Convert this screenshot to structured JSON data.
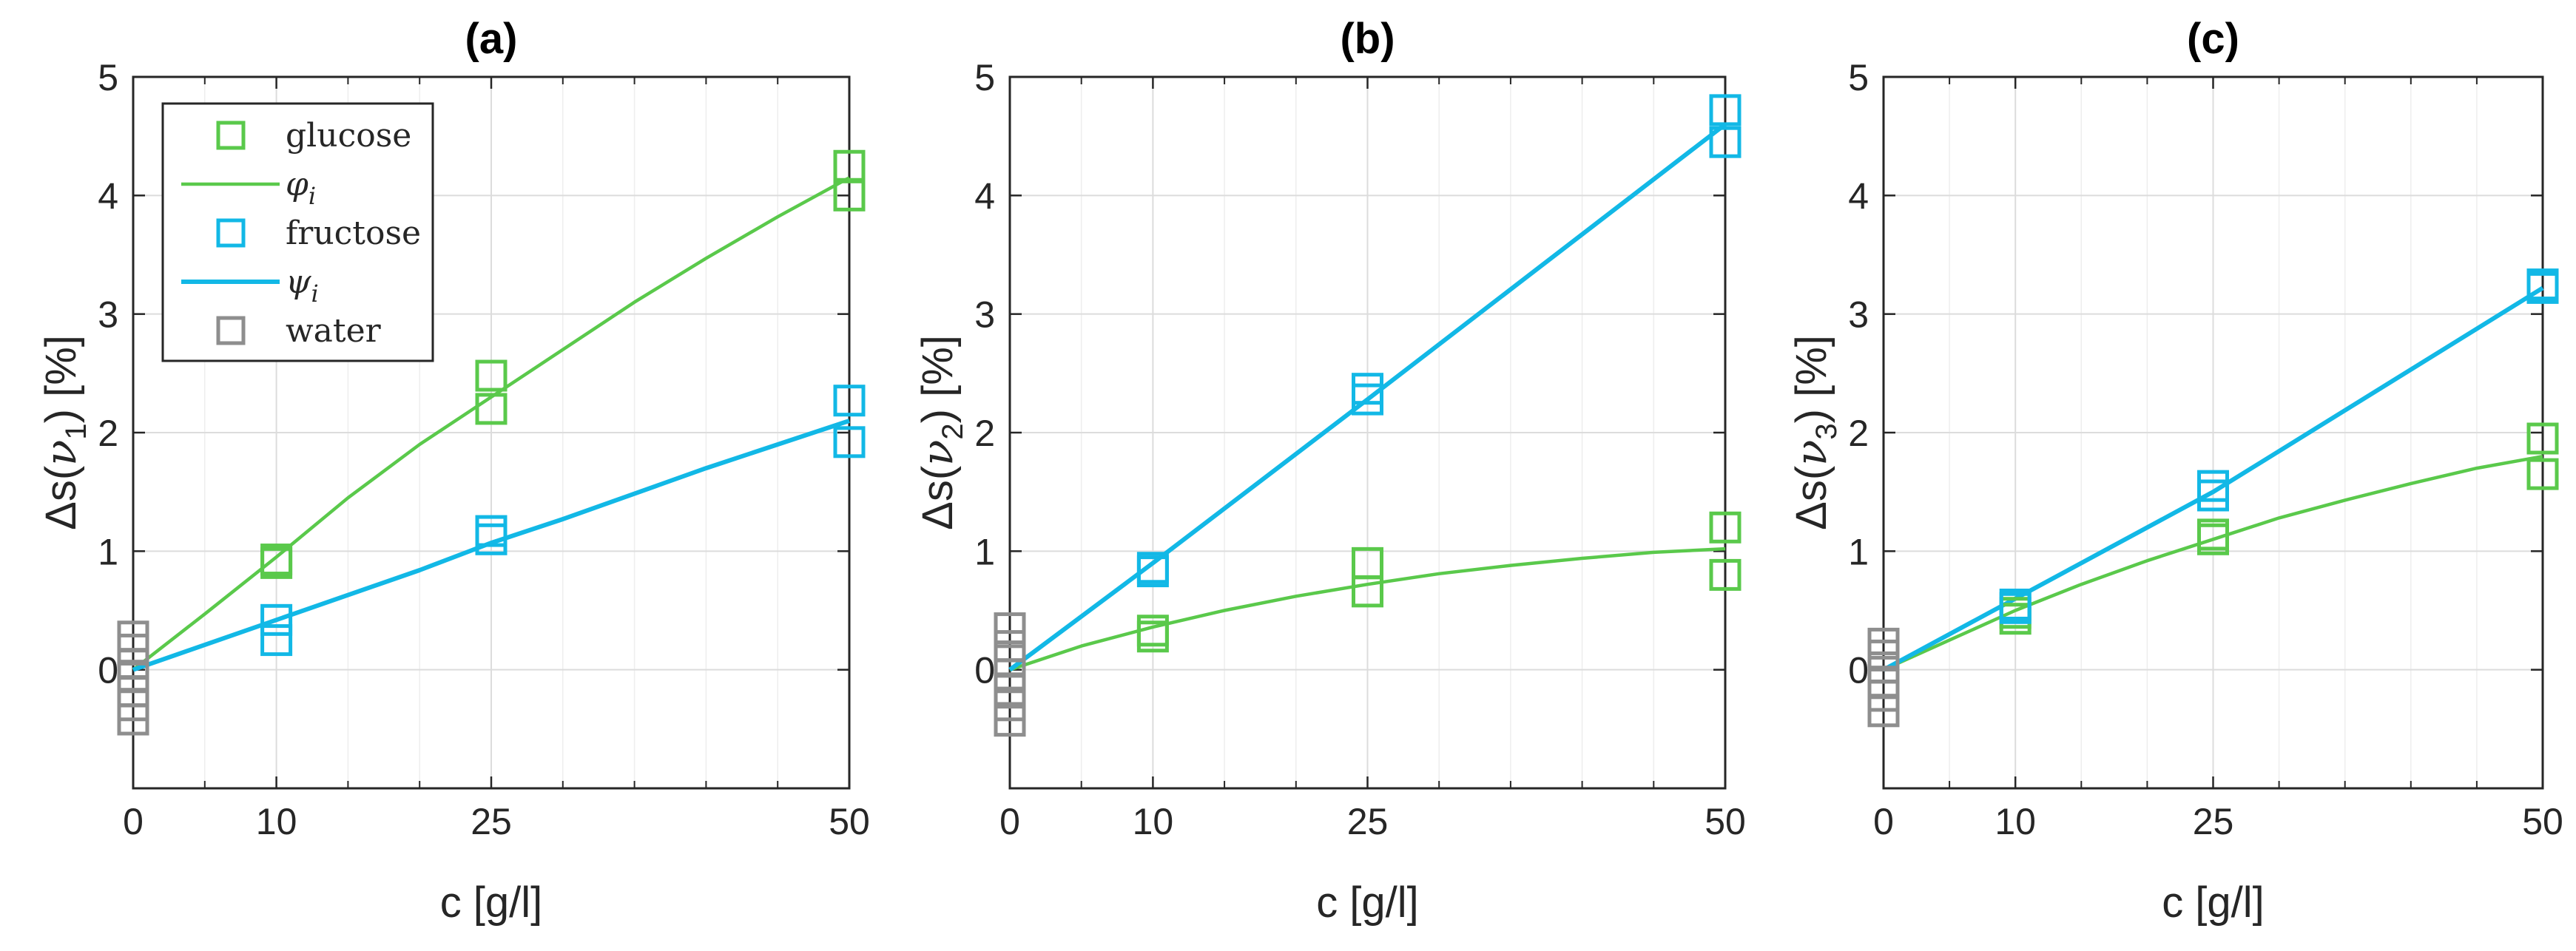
{
  "chart_data": [
    {
      "type": "line",
      "title": "(a)",
      "xlabel": "c [g/l]",
      "ylabel_parts": [
        "Δs(",
        "ν",
        "1",
        ") [%]"
      ],
      "x_ticks": [
        0,
        10,
        25,
        50
      ],
      "y_ticks": [
        0,
        1,
        2,
        3,
        4,
        5
      ],
      "xlim": [
        0,
        50
      ],
      "ylim": [
        -1,
        5
      ],
      "grid": true,
      "legend": {
        "position": "top-left",
        "entries": [
          {
            "label": "glucose",
            "kind": "marker",
            "color": "#5ac94b"
          },
          {
            "label": "φ",
            "sub": "i",
            "kind": "line",
            "color": "#5ac94b"
          },
          {
            "label": "fructose",
            "kind": "marker",
            "color": "#12b8e6"
          },
          {
            "label": "ψ",
            "sub": "i",
            "kind": "line",
            "color": "#12b8e6"
          },
          {
            "label": "water",
            "kind": "marker",
            "color": "#8e8e8e"
          }
        ]
      },
      "series": [
        {
          "name": "glucose",
          "kind": "marker",
          "color": "#5ac94b",
          "points": [
            [
              10,
              0.9
            ],
            [
              10,
              0.93
            ],
            [
              25,
              2.2
            ],
            [
              25,
              2.48
            ],
            [
              50,
              4.0
            ],
            [
              50,
              4.25
            ]
          ]
        },
        {
          "name": "φi",
          "kind": "line",
          "color": "#5ac94b",
          "points": [
            [
              0,
              0
            ],
            [
              5,
              0.47
            ],
            [
              10,
              0.95
            ],
            [
              15,
              1.45
            ],
            [
              20,
              1.9
            ],
            [
              25,
              2.3
            ],
            [
              30,
              2.7
            ],
            [
              35,
              3.1
            ],
            [
              40,
              3.47
            ],
            [
              45,
              3.82
            ],
            [
              50,
              4.15
            ]
          ]
        },
        {
          "name": "fructose",
          "kind": "marker",
          "color": "#12b8e6",
          "points": [
            [
              10,
              0.25
            ],
            [
              10,
              0.42
            ],
            [
              25,
              1.1
            ],
            [
              25,
              1.17
            ],
            [
              50,
              1.92
            ],
            [
              50,
              2.27
            ]
          ]
        },
        {
          "name": "ψi",
          "kind": "line",
          "color": "#12b8e6",
          "points": [
            [
              0,
              0
            ],
            [
              10,
              0.42
            ],
            [
              20,
              0.84
            ],
            [
              25,
              1.07
            ],
            [
              30,
              1.27
            ],
            [
              40,
              1.7
            ],
            [
              50,
              2.1
            ]
          ]
        },
        {
          "name": "water",
          "kind": "marker",
          "color": "#8e8e8e",
          "points": [
            [
              0,
              -0.42
            ],
            [
              0,
              -0.3
            ],
            [
              0,
              -0.18
            ],
            [
              0,
              -0.05
            ],
            [
              0,
              0.05
            ],
            [
              0,
              0.17
            ],
            [
              0,
              0.28
            ]
          ]
        }
      ]
    },
    {
      "type": "line",
      "title": "(b)",
      "xlabel": "c [g/l]",
      "ylabel_parts": [
        "Δs(",
        "ν",
        "2",
        ") [%]"
      ],
      "x_ticks": [
        0,
        10,
        25,
        50
      ],
      "y_ticks": [
        0,
        1,
        2,
        3,
        4,
        5
      ],
      "xlim": [
        0,
        50
      ],
      "ylim": [
        -1,
        5
      ],
      "grid": true,
      "series": [
        {
          "name": "glucose",
          "kind": "marker",
          "color": "#5ac94b",
          "points": [
            [
              10,
              0.28
            ],
            [
              10,
              0.33
            ],
            [
              25,
              0.66
            ],
            [
              25,
              0.9
            ],
            [
              50,
              0.8
            ],
            [
              50,
              1.2
            ]
          ]
        },
        {
          "name": "φi",
          "kind": "line",
          "color": "#5ac94b",
          "points": [
            [
              0,
              0
            ],
            [
              5,
              0.2
            ],
            [
              10,
              0.36
            ],
            [
              15,
              0.5
            ],
            [
              20,
              0.62
            ],
            [
              25,
              0.72
            ],
            [
              30,
              0.81
            ],
            [
              35,
              0.88
            ],
            [
              40,
              0.94
            ],
            [
              45,
              0.99
            ],
            [
              50,
              1.02
            ]
          ]
        },
        {
          "name": "fructose",
          "kind": "marker",
          "color": "#12b8e6",
          "points": [
            [
              10,
              0.83
            ],
            [
              10,
              0.86
            ],
            [
              25,
              2.28
            ],
            [
              25,
              2.37
            ],
            [
              50,
              4.45
            ],
            [
              50,
              4.72
            ]
          ]
        },
        {
          "name": "ψi",
          "kind": "line",
          "color": "#12b8e6",
          "points": [
            [
              0,
              0
            ],
            [
              10,
              0.9
            ],
            [
              25,
              2.28
            ],
            [
              50,
              4.6
            ]
          ]
        },
        {
          "name": "water",
          "kind": "marker",
          "color": "#8e8e8e",
          "points": [
            [
              0,
              -0.43
            ],
            [
              0,
              -0.3
            ],
            [
              0,
              -0.17
            ],
            [
              0,
              -0.04
            ],
            [
              0,
              0.08
            ],
            [
              0,
              0.2
            ],
            [
              0,
              0.35
            ]
          ]
        }
      ]
    },
    {
      "type": "line",
      "title": "(c)",
      "xlabel": "c [g/l]",
      "ylabel_parts": [
        "Δs(",
        "ν",
        "3",
        ") [%]"
      ],
      "x_ticks": [
        0,
        10,
        25,
        50
      ],
      "y_ticks": [
        0,
        1,
        2,
        3,
        4,
        5
      ],
      "xlim": [
        0,
        50
      ],
      "ylim": [
        -1,
        5
      ],
      "grid": true,
      "series": [
        {
          "name": "glucose",
          "kind": "marker",
          "color": "#5ac94b",
          "points": [
            [
              10,
              0.43
            ],
            [
              10,
              0.48
            ],
            [
              25,
              1.1
            ],
            [
              25,
              1.14
            ],
            [
              50,
              1.65
            ],
            [
              50,
              1.95
            ]
          ]
        },
        {
          "name": "φi",
          "kind": "line",
          "color": "#5ac94b",
          "points": [
            [
              0,
              0
            ],
            [
              5,
              0.25
            ],
            [
              10,
              0.5
            ],
            [
              15,
              0.72
            ],
            [
              20,
              0.92
            ],
            [
              25,
              1.1
            ],
            [
              30,
              1.28
            ],
            [
              35,
              1.43
            ],
            [
              40,
              1.57
            ],
            [
              45,
              1.7
            ],
            [
              50,
              1.8
            ]
          ]
        },
        {
          "name": "fructose",
          "kind": "marker",
          "color": "#12b8e6",
          "points": [
            [
              10,
              0.52
            ],
            [
              10,
              0.55
            ],
            [
              25,
              1.47
            ],
            [
              25,
              1.55
            ],
            [
              50,
              3.22
            ],
            [
              50,
              3.25
            ]
          ]
        },
        {
          "name": "ψi",
          "kind": "line",
          "color": "#12b8e6",
          "points": [
            [
              0,
              0
            ],
            [
              10,
              0.6
            ],
            [
              25,
              1.5
            ],
            [
              50,
              3.22
            ]
          ]
        },
        {
          "name": "water",
          "kind": "marker",
          "color": "#8e8e8e",
          "points": [
            [
              0,
              -0.35
            ],
            [
              0,
              -0.22
            ],
            [
              0,
              -0.1
            ],
            [
              0,
              0.02
            ],
            [
              0,
              0.12
            ],
            [
              0,
              0.22
            ]
          ]
        }
      ]
    }
  ]
}
